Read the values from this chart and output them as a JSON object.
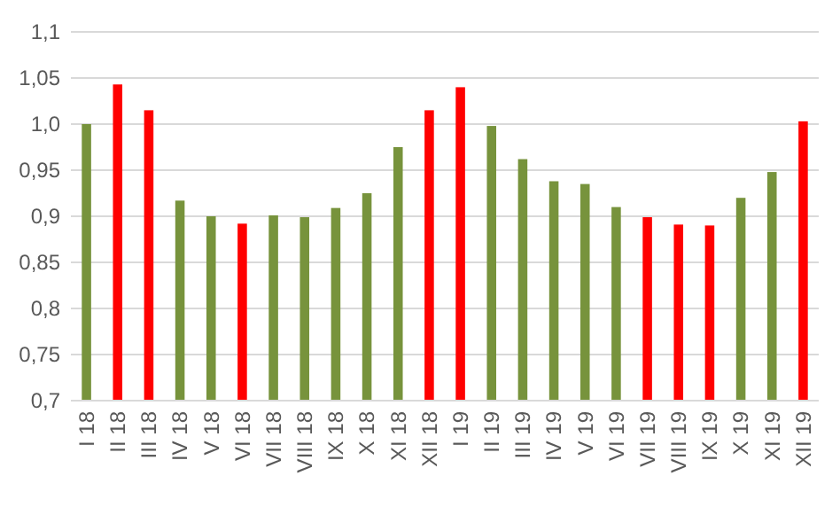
{
  "chart_data": {
    "type": "bar",
    "categories": [
      "I 18",
      "II 18",
      "III 18",
      "IV 18",
      "V 18",
      "VI 18",
      "VII 18",
      "VIII 18",
      "IX 18",
      "X 18",
      "XI 18",
      "XII 18",
      "I 19",
      "II 19",
      "III 19",
      "IV 19",
      "V 19",
      "VI 19",
      "VII 19",
      "VIII 19",
      "IX 19",
      "X 19",
      "XI 19",
      "XII 19"
    ],
    "values": [
      1.0,
      1.043,
      1.015,
      0.917,
      0.9,
      0.892,
      0.901,
      0.899,
      0.909,
      0.925,
      0.975,
      1.015,
      1.04,
      0.998,
      0.962,
      0.938,
      0.935,
      0.91,
      0.899,
      0.891,
      0.89,
      0.92,
      0.948,
      1.003
    ],
    "colors": [
      "#77933c",
      "#ff0000",
      "#ff0000",
      "#77933c",
      "#77933c",
      "#ff0000",
      "#77933c",
      "#77933c",
      "#77933c",
      "#77933c",
      "#77933c",
      "#ff0000",
      "#ff0000",
      "#77933c",
      "#77933c",
      "#77933c",
      "#77933c",
      "#77933c",
      "#ff0000",
      "#ff0000",
      "#ff0000",
      "#77933c",
      "#77933c",
      "#ff0000"
    ],
    "ylim": [
      0.7,
      1.1
    ],
    "yticks": [
      {
        "value": 0.7,
        "label": "0,7"
      },
      {
        "value": 0.75,
        "label": "0,75"
      },
      {
        "value": 0.8,
        "label": "0,8"
      },
      {
        "value": 0.85,
        "label": "0,85"
      },
      {
        "value": 0.9,
        "label": "0,9"
      },
      {
        "value": 0.95,
        "label": "0,95"
      },
      {
        "value": 1.0,
        "label": "1,0"
      },
      {
        "value": 1.05,
        "label": "1,05"
      },
      {
        "value": 1.1,
        "label": "1,1"
      }
    ],
    "grid": "y"
  }
}
